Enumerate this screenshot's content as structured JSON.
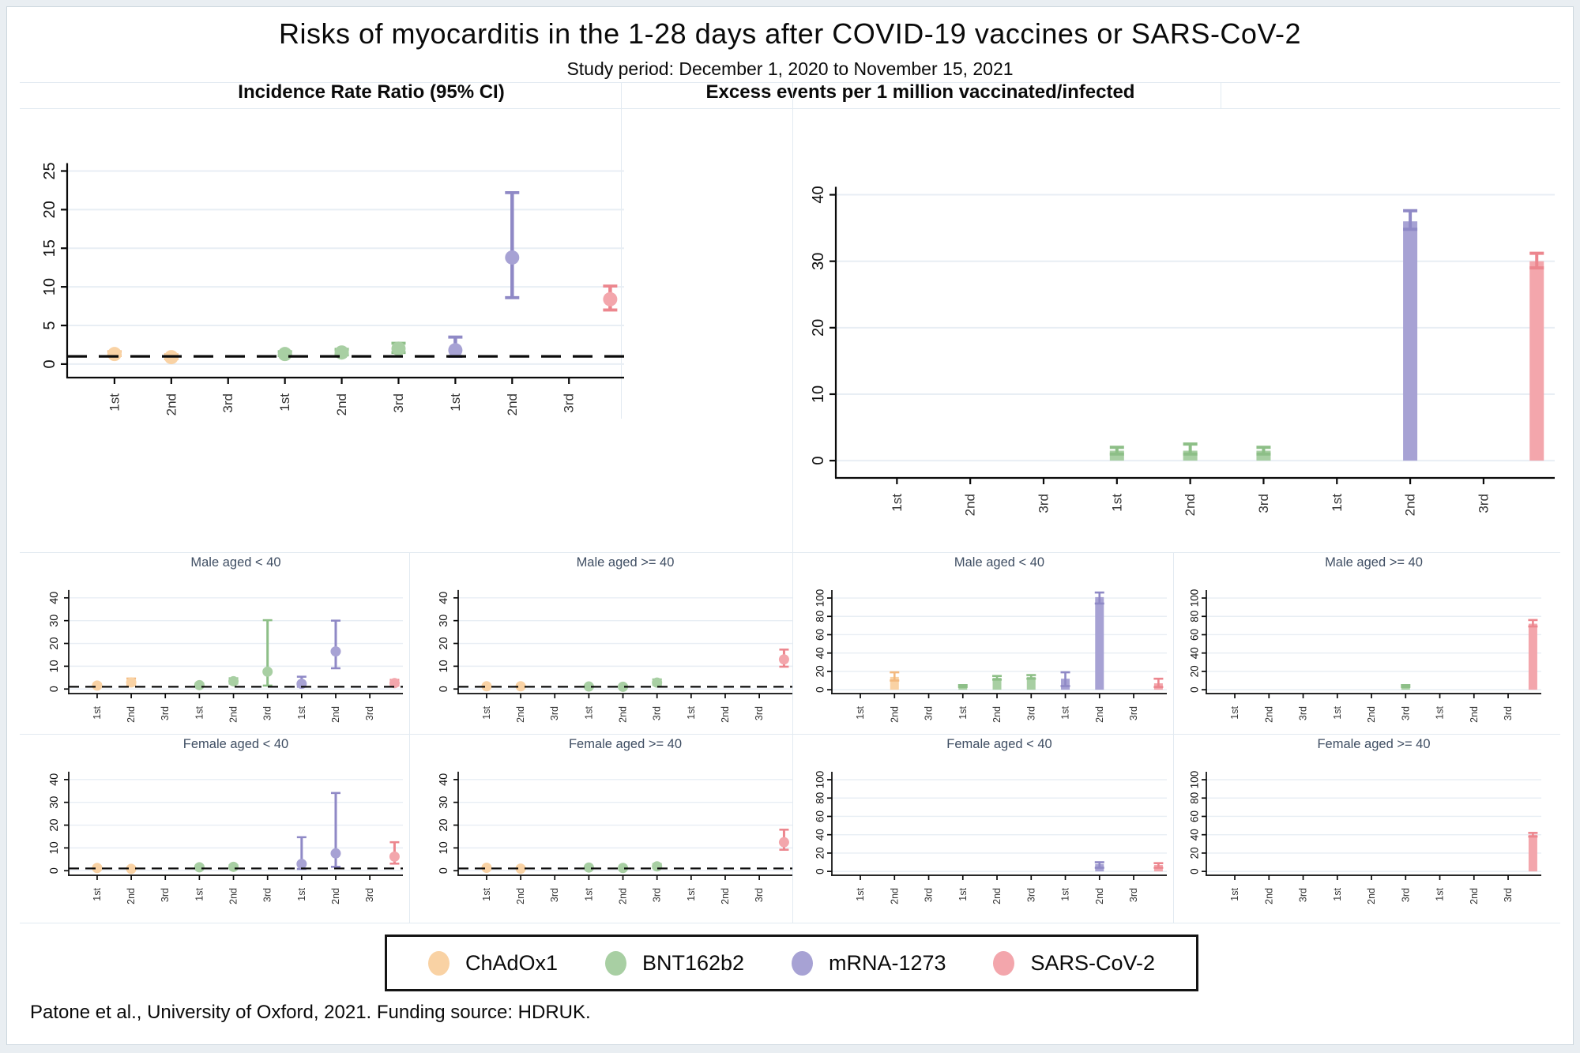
{
  "page": {
    "title": "Risks of myocarditis in the 1-28 days after COVID-19 vaccines or SARS-CoV-2",
    "subtitle": "Study period: December 1, 2020 to November 15, 2021",
    "footer": "Patone et al., University of Oxford, 2021. Funding source: HDRUK."
  },
  "column_headers": {
    "irr": "Incidence Rate Ratio (95% CI)",
    "excess": "Excess events per 1 million vaccinated/infected"
  },
  "legend": [
    {
      "label": "ChAdOx1",
      "color": "#f9d2a4",
      "edge_color": "#f3b97e"
    },
    {
      "label": "BNT162b2",
      "color": "#a8cfa3",
      "edge_color": "#8dbf87"
    },
    {
      "label": "mRNA-1273",
      "color": "#a7a2d4",
      "edge_color": "#8f89c6"
    },
    {
      "label": "SARS-CoV-2",
      "color": "#f3a6ac",
      "edge_color": "#ec868e"
    }
  ],
  "dose_labels": [
    "1st",
    "2nd",
    "3rd",
    "1st",
    "2nd",
    "3rd",
    "1st",
    "2nd",
    "3rd"
  ],
  "reference_line_value": 1,
  "chart_data": [
    {
      "id": "overall-irr",
      "type": "scatter-errorbar",
      "title": "",
      "yticks": [
        0,
        5,
        10,
        15,
        20,
        25
      ],
      "ylim": [
        0,
        25
      ],
      "ref_line": 1,
      "grid": true,
      "points": [
        {
          "group": "ChAdOx1",
          "dose": "1st",
          "slot": 1,
          "est": 1.3,
          "lo": 1.1,
          "hi": 1.6
        },
        {
          "group": "ChAdOx1",
          "dose": "2nd",
          "slot": 2,
          "est": 0.9,
          "lo": 0.7,
          "hi": 1.2
        },
        {
          "group": "BNT162b2",
          "dose": "1st",
          "slot": 4,
          "est": 1.3,
          "lo": 1.1,
          "hi": 1.6
        },
        {
          "group": "BNT162b2",
          "dose": "2nd",
          "slot": 5,
          "est": 1.5,
          "lo": 1.2,
          "hi": 1.9
        },
        {
          "group": "BNT162b2",
          "dose": "3rd",
          "slot": 6,
          "est": 2.0,
          "lo": 1.5,
          "hi": 2.7
        },
        {
          "group": "mRNA-1273",
          "dose": "1st",
          "slot": 7,
          "est": 1.8,
          "lo": 1.0,
          "hi": 3.5
        },
        {
          "group": "mRNA-1273",
          "dose": "2nd",
          "slot": 8,
          "est": 13.8,
          "lo": 8.6,
          "hi": 22.2
        },
        {
          "group": "SARS-CoV-2",
          "dose": "",
          "slot": 10,
          "est": 8.4,
          "lo": 7.0,
          "hi": 10.1
        }
      ]
    },
    {
      "id": "overall-excess",
      "type": "bar-errorbar",
      "title": "",
      "yticks": [
        0,
        10,
        20,
        30,
        40
      ],
      "ylim": [
        0,
        40
      ],
      "grid": true,
      "points": [
        {
          "group": "BNT162b2",
          "dose": "1st",
          "slot": 4,
          "est": 1.5,
          "lo": 1.0,
          "hi": 2.0
        },
        {
          "group": "BNT162b2",
          "dose": "2nd",
          "slot": 5,
          "est": 1.5,
          "lo": 1.0,
          "hi": 2.5
        },
        {
          "group": "BNT162b2",
          "dose": "3rd",
          "slot": 6,
          "est": 1.5,
          "lo": 1.0,
          "hi": 2.0
        },
        {
          "group": "mRNA-1273",
          "dose": "2nd",
          "slot": 8,
          "est": 36.0,
          "lo": 34.8,
          "hi": 37.6
        },
        {
          "group": "SARS-CoV-2",
          "dose": "",
          "slot": 10,
          "est": 30.0,
          "lo": 29.0,
          "hi": 31.2
        }
      ]
    },
    {
      "id": "irr-male-under40",
      "type": "scatter-errorbar",
      "title": "Male aged < 40",
      "yticks": [
        0,
        10,
        20,
        30,
        40
      ],
      "ylim": [
        0,
        40
      ],
      "ref_line": 1,
      "grid": true,
      "points": [
        {
          "group": "ChAdOx1",
          "dose": "1st",
          "slot": 1,
          "est": 1.5,
          "lo": 1.0,
          "hi": 2.2
        },
        {
          "group": "ChAdOx1",
          "dose": "2nd",
          "slot": 2,
          "est": 2.9,
          "lo": 1.8,
          "hi": 4.6
        },
        {
          "group": "BNT162b2",
          "dose": "1st",
          "slot": 4,
          "est": 1.7,
          "lo": 1.2,
          "hi": 2.4
        },
        {
          "group": "BNT162b2",
          "dose": "2nd",
          "slot": 5,
          "est": 3.4,
          "lo": 2.4,
          "hi": 4.7
        },
        {
          "group": "BNT162b2",
          "dose": "3rd",
          "slot": 6,
          "est": 7.6,
          "lo": 1.5,
          "hi": 30.2
        },
        {
          "group": "mRNA-1273",
          "dose": "1st",
          "slot": 7,
          "est": 2.3,
          "lo": 1.0,
          "hi": 5.4
        },
        {
          "group": "mRNA-1273",
          "dose": "2nd",
          "slot": 8,
          "est": 16.5,
          "lo": 9.1,
          "hi": 30.0
        },
        {
          "group": "SARS-CoV-2",
          "dose": "",
          "slot": 10,
          "est": 2.6,
          "lo": 1.5,
          "hi": 4.0
        }
      ]
    },
    {
      "id": "irr-male-40plus",
      "type": "scatter-errorbar",
      "title": "Male aged >= 40",
      "yticks": [
        0,
        10,
        20,
        30,
        40
      ],
      "ylim": [
        0,
        40
      ],
      "ref_line": 1,
      "grid": true,
      "points": [
        {
          "group": "ChAdOx1",
          "dose": "1st",
          "slot": 1,
          "est": 1.2,
          "lo": 0.9,
          "hi": 1.6
        },
        {
          "group": "ChAdOx1",
          "dose": "2nd",
          "slot": 2,
          "est": 1.2,
          "lo": 0.9,
          "hi": 1.6
        },
        {
          "group": "BNT162b2",
          "dose": "1st",
          "slot": 4,
          "est": 1.1,
          "lo": 0.8,
          "hi": 1.5
        },
        {
          "group": "BNT162b2",
          "dose": "2nd",
          "slot": 5,
          "est": 1.0,
          "lo": 0.7,
          "hi": 1.4
        },
        {
          "group": "BNT162b2",
          "dose": "3rd",
          "slot": 6,
          "est": 2.8,
          "lo": 1.8,
          "hi": 4.2
        },
        {
          "group": "SARS-CoV-2",
          "dose": "",
          "slot": 10,
          "est": 13.0,
          "lo": 9.8,
          "hi": 17.3
        }
      ]
    },
    {
      "id": "irr-female-under40",
      "type": "scatter-errorbar",
      "title": "Female aged < 40",
      "yticks": [
        0,
        10,
        20,
        30,
        40
      ],
      "ylim": [
        0,
        40
      ],
      "ref_line": 1,
      "grid": true,
      "points": [
        {
          "group": "ChAdOx1",
          "dose": "1st",
          "slot": 1,
          "est": 1.2,
          "lo": 0.8,
          "hi": 1.8
        },
        {
          "group": "ChAdOx1",
          "dose": "2nd",
          "slot": 2,
          "est": 0.8,
          "lo": 0.5,
          "hi": 1.3
        },
        {
          "group": "BNT162b2",
          "dose": "1st",
          "slot": 4,
          "est": 1.5,
          "lo": 1.0,
          "hi": 2.1
        },
        {
          "group": "BNT162b2",
          "dose": "2nd",
          "slot": 5,
          "est": 1.7,
          "lo": 1.1,
          "hi": 2.4
        },
        {
          "group": "mRNA-1273",
          "dose": "1st",
          "slot": 7,
          "est": 3.0,
          "lo": 0.8,
          "hi": 14.7
        },
        {
          "group": "mRNA-1273",
          "dose": "2nd",
          "slot": 8,
          "est": 7.6,
          "lo": 1.7,
          "hi": 34.1
        },
        {
          "group": "SARS-CoV-2",
          "dose": "",
          "slot": 10,
          "est": 6.2,
          "lo": 3.1,
          "hi": 12.5
        }
      ]
    },
    {
      "id": "irr-female-40plus",
      "type": "scatter-errorbar",
      "title": "Female aged >= 40",
      "yticks": [
        0,
        10,
        20,
        30,
        40
      ],
      "ylim": [
        0,
        40
      ],
      "ref_line": 1,
      "grid": true,
      "points": [
        {
          "group": "ChAdOx1",
          "dose": "1st",
          "slot": 1,
          "est": 1.3,
          "lo": 1.0,
          "hi": 1.7
        },
        {
          "group": "ChAdOx1",
          "dose": "2nd",
          "slot": 2,
          "est": 0.9,
          "lo": 0.6,
          "hi": 1.2
        },
        {
          "group": "BNT162b2",
          "dose": "1st",
          "slot": 4,
          "est": 1.4,
          "lo": 1.1,
          "hi": 1.8
        },
        {
          "group": "BNT162b2",
          "dose": "2nd",
          "slot": 5,
          "est": 1.2,
          "lo": 0.9,
          "hi": 1.6
        },
        {
          "group": "BNT162b2",
          "dose": "3rd",
          "slot": 6,
          "est": 1.9,
          "lo": 1.2,
          "hi": 2.9
        },
        {
          "group": "SARS-CoV-2",
          "dose": "",
          "slot": 10,
          "est": 12.5,
          "lo": 9.2,
          "hi": 18.0
        }
      ]
    },
    {
      "id": "excess-male-under40",
      "type": "bar-errorbar",
      "title": "Male aged < 40",
      "yticks": [
        0,
        20,
        40,
        60,
        80,
        100
      ],
      "ylim": [
        0,
        100
      ],
      "grid": true,
      "points": [
        {
          "group": "ChAdOx1",
          "dose": "2nd",
          "slot": 2,
          "est": 14.0,
          "lo": 10.0,
          "hi": 19.0
        },
        {
          "group": "BNT162b2",
          "dose": "1st",
          "slot": 4,
          "est": 4.0,
          "lo": 3.0,
          "hi": 5.0
        },
        {
          "group": "BNT162b2",
          "dose": "2nd",
          "slot": 5,
          "est": 13.0,
          "lo": 11.0,
          "hi": 15.0
        },
        {
          "group": "BNT162b2",
          "dose": "3rd",
          "slot": 6,
          "est": 14.0,
          "lo": 12.0,
          "hi": 16.0
        },
        {
          "group": "mRNA-1273",
          "dose": "1st",
          "slot": 7,
          "est": 12.0,
          "lo": 4.0,
          "hi": 19.0
        },
        {
          "group": "mRNA-1273",
          "dose": "2nd",
          "slot": 8,
          "est": 101.0,
          "lo": 94.0,
          "hi": 106.0
        },
        {
          "group": "SARS-CoV-2",
          "dose": "",
          "slot": 10,
          "est": 7.0,
          "lo": 3.0,
          "hi": 12.0
        }
      ]
    },
    {
      "id": "excess-male-40plus",
      "type": "bar-errorbar",
      "title": "Male aged >= 40",
      "yticks": [
        0,
        20,
        40,
        60,
        80,
        100
      ],
      "ylim": [
        0,
        100
      ],
      "grid": true,
      "points": [
        {
          "group": "BNT162b2",
          "dose": "3rd",
          "slot": 6,
          "est": 4.0,
          "lo": 3.0,
          "hi": 5.0
        },
        {
          "group": "SARS-CoV-2",
          "dose": "",
          "slot": 10,
          "est": 72.0,
          "lo": 69.0,
          "hi": 76.0
        }
      ]
    },
    {
      "id": "excess-female-under40",
      "type": "bar-errorbar",
      "title": "Female aged < 40",
      "yticks": [
        0,
        20,
        40,
        60,
        80,
        100
      ],
      "ylim": [
        0,
        100
      ],
      "grid": true,
      "points": [
        {
          "group": "mRNA-1273",
          "dose": "2nd",
          "slot": 8,
          "est": 8.0,
          "lo": 4.0,
          "hi": 10.0
        },
        {
          "group": "SARS-CoV-2",
          "dose": "",
          "slot": 10,
          "est": 7.0,
          "lo": 4.0,
          "hi": 9.0
        }
      ]
    },
    {
      "id": "excess-female-40plus",
      "type": "bar-errorbar",
      "title": "Female aged >= 40",
      "yticks": [
        0,
        20,
        40,
        60,
        80,
        100
      ],
      "ylim": [
        0,
        100
      ],
      "grid": true,
      "points": [
        {
          "group": "SARS-CoV-2",
          "dose": "",
          "slot": 10,
          "est": 40.0,
          "lo": 38.0,
          "hi": 42.0
        }
      ]
    }
  ]
}
